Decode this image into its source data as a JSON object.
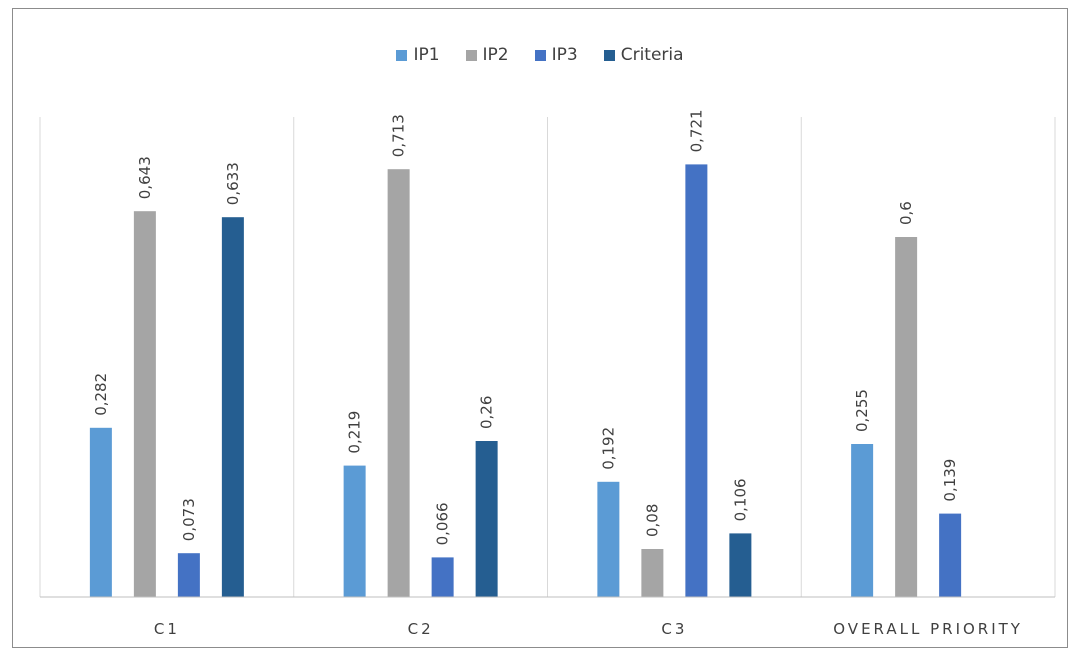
{
  "chart_data": {
    "type": "bar",
    "categories": [
      "C1",
      "C2",
      "C3",
      "OVERALL PRIORITY"
    ],
    "series": [
      {
        "name": "IP1",
        "color": "#5b9bd5",
        "values": [
          0.282,
          0.219,
          0.192,
          0.255
        ],
        "labels": [
          "0,282",
          "0,219",
          "0,192",
          "0,255"
        ]
      },
      {
        "name": "IP2",
        "color": "#a5a5a5",
        "values": [
          0.643,
          0.713,
          0.08,
          0.6
        ],
        "labels": [
          "0,643",
          "0,713",
          "0,08",
          "0,6"
        ]
      },
      {
        "name": "IP3",
        "color": "#4472c4",
        "values": [
          0.073,
          0.066,
          0.721,
          0.139
        ],
        "labels": [
          "0,073",
          "0,066",
          "0,721",
          "0,139"
        ]
      },
      {
        "name": "Criteria",
        "color": "#255e91",
        "values": [
          0.633,
          0.26,
          0.106,
          null
        ],
        "labels": [
          "0,633",
          "0,26",
          "0,106",
          ""
        ]
      }
    ],
    "ylim": [
      0,
      0.8
    ],
    "legend_position": "top-center",
    "grid": false,
    "title": "",
    "xlabel": "",
    "ylabel": ""
  }
}
